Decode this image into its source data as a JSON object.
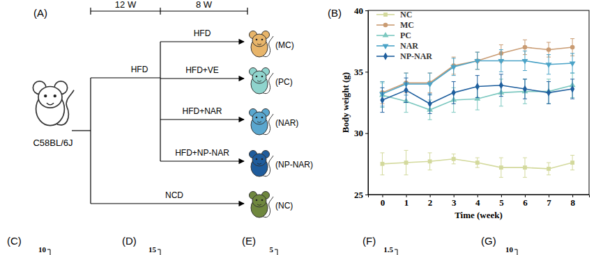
{
  "diagram": {
    "panel_label": "(A)",
    "timeline_labels": [
      "12 W",
      "8 W"
    ],
    "strain": "C58BL/6J",
    "induction": "HFD",
    "groups": [
      {
        "treatment": "HFD",
        "label": "(MC)",
        "color": "#e8b56a"
      },
      {
        "treatment": "HFD+VE",
        "label": "(PC)",
        "color": "#8fd4cd"
      },
      {
        "treatment": "HFD+NAR",
        "label": "(NAR)",
        "color": "#5aa7cf"
      },
      {
        "treatment": "HFD+NP-NAR",
        "label": "(NP-NAR)",
        "color": "#1f5c9c"
      }
    ],
    "control": {
      "treatment": "NCD",
      "label": "(NC)",
      "color": "#6f873e"
    }
  },
  "chart_data": {
    "type": "line",
    "panel_label": "(B)",
    "x_label": "Time (week)",
    "y_label": "Body weight (g)",
    "x": [
      0,
      1,
      2,
      3,
      4,
      5,
      6,
      7,
      8
    ],
    "xlim": [
      -0.6,
      8.7
    ],
    "xticks": [
      0,
      1,
      2,
      3,
      4,
      5,
      6,
      7,
      8
    ],
    "ylim": [
      25,
      40
    ],
    "yticks": [
      25,
      30,
      35,
      40
    ],
    "legend": "upper left",
    "series": [
      {
        "name": "NC",
        "color": "#d3d99c",
        "marker": "square",
        "values": [
          27.5,
          27.6,
          27.7,
          27.9,
          27.6,
          27.2,
          27.2,
          27.1,
          27.6
        ],
        "errors": [
          0.9,
          1.0,
          0.7,
          0.4,
          0.4,
          0.8,
          0.8,
          0.5,
          0.6
        ]
      },
      {
        "name": "MC",
        "color": "#c99b72",
        "marker": "circle",
        "values": [
          33.3,
          34.1,
          34.1,
          35.5,
          35.9,
          36.5,
          37.0,
          36.8,
          37.0
        ],
        "errors": [
          0.9,
          0.8,
          0.8,
          0.7,
          0.7,
          0.7,
          0.6,
          0.6,
          0.7
        ]
      },
      {
        "name": "PC",
        "color": "#7cc8c0",
        "marker": "triangle-up",
        "values": [
          33.1,
          32.6,
          31.9,
          32.7,
          32.8,
          33.3,
          33.4,
          33.4,
          33.9
        ],
        "errors": [
          1.0,
          0.9,
          0.8,
          1.0,
          0.9,
          1.1,
          1.0,
          1.0,
          1.0
        ]
      },
      {
        "name": "NAR",
        "color": "#4ba3c7",
        "marker": "triangle-down",
        "values": [
          33.2,
          34.0,
          34.0,
          35.4,
          35.9,
          35.9,
          35.9,
          35.6,
          35.7
        ],
        "errors": [
          1.0,
          0.9,
          0.9,
          0.7,
          0.7,
          0.9,
          0.8,
          0.8,
          0.8
        ]
      },
      {
        "name": "NP-NAR",
        "color": "#1f5f9e",
        "marker": "diamond",
        "values": [
          32.7,
          33.5,
          32.4,
          33.3,
          33.8,
          33.9,
          33.6,
          33.3,
          33.6
        ],
        "errors": [
          1.0,
          1.0,
          0.8,
          0.9,
          0.9,
          0.9,
          0.8,
          0.9,
          0.8
        ]
      }
    ]
  },
  "cropped_panels": [
    {
      "label": "(C)",
      "ticks": [
        10
      ]
    },
    {
      "label": "(D)",
      "ticks": [
        15
      ]
    },
    {
      "label": "(E)",
      "ticks": [
        5
      ]
    },
    {
      "label": "(F)",
      "ticks": [
        1.5
      ]
    },
    {
      "label": "(G)",
      "ticks": [
        10
      ]
    }
  ]
}
